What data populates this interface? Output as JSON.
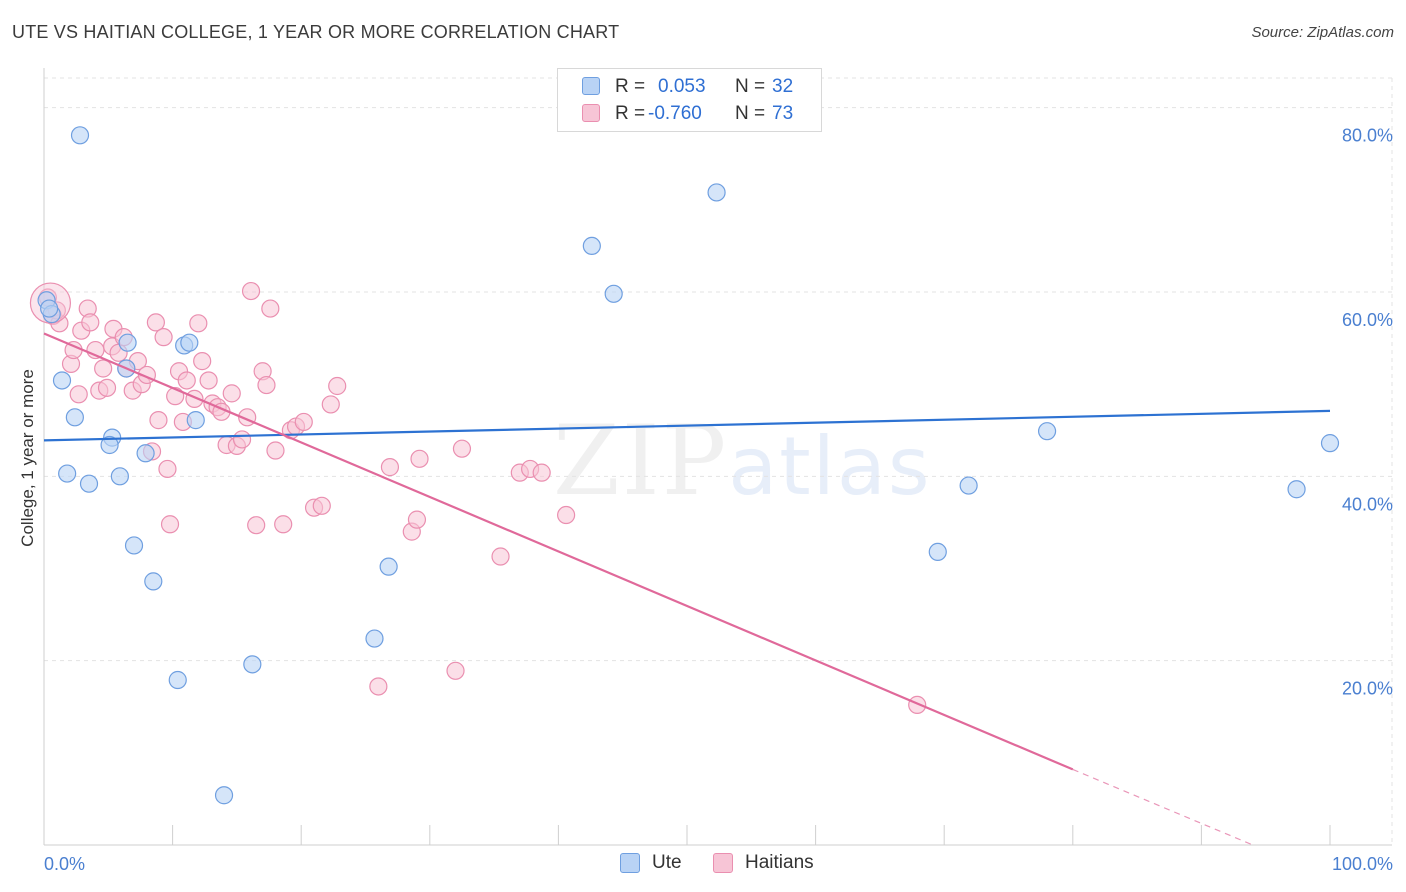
{
  "header": {
    "title": "UTE VS HAITIAN COLLEGE, 1 YEAR OR MORE CORRELATION CHART",
    "source": "Source: ZipAtlas.com"
  },
  "watermark": {
    "zip": "ZIP",
    "atlas": "atlas"
  },
  "legend_top": {
    "rows": [
      {
        "r_label": "R =",
        "r_value": "0.053",
        "n_label": "N =",
        "n_value": "32"
      },
      {
        "r_label": "R =",
        "r_value": "-0.760",
        "n_label": "N =",
        "n_value": "73"
      }
    ]
  },
  "legend_bottom": {
    "ute": "Ute",
    "haitians": "Haitians"
  },
  "colors": {
    "ute_fill": "#b9d3f5",
    "ute_stroke": "#6f9fe0",
    "ute_line": "#2d72d2",
    "haitian_fill": "#f7c5d6",
    "haitian_stroke": "#ea8fb0",
    "haitian_line": "#e0699a",
    "grid": "#e3e3e3",
    "tick_text": "#4a7fd0"
  },
  "chart_data": {
    "type": "scatter",
    "title": "UTE VS HAITIAN COLLEGE, 1 YEAR OR MORE CORRELATION CHART",
    "xlabel": "",
    "ylabel": "College, 1 year or more",
    "xlim": [
      0,
      100
    ],
    "ylim": [
      0,
      83
    ],
    "x_ticks": [
      {
        "value": 0,
        "label": "0.0%"
      },
      {
        "value": 100,
        "label": "100.0%"
      }
    ],
    "y_ticks": [
      {
        "value": 20,
        "label": "20.0%"
      },
      {
        "value": 40,
        "label": "40.0%"
      },
      {
        "value": 60,
        "label": "60.0%"
      },
      {
        "value": 80,
        "label": "80.0%"
      }
    ],
    "series": [
      {
        "name": "Ute",
        "R": 0.053,
        "N": 32,
        "trend": {
          "x": [
            0,
            100
          ],
          "y": [
            43.9,
            47.1
          ]
        },
        "points": [
          [
            0.2,
            59.1
          ],
          [
            0.6,
            57.6
          ],
          [
            2.8,
            77.0
          ],
          [
            1.4,
            50.4
          ],
          [
            2.4,
            46.4
          ],
          [
            1.8,
            40.3
          ],
          [
            3.5,
            39.2
          ],
          [
            5.3,
            44.2
          ],
          [
            5.1,
            43.4
          ],
          [
            5.9,
            40.0
          ],
          [
            6.5,
            54.5
          ],
          [
            6.4,
            51.7
          ],
          [
            7.0,
            32.5
          ],
          [
            7.9,
            42.5
          ],
          [
            8.5,
            28.6
          ],
          [
            10.4,
            17.9
          ],
          [
            10.9,
            54.2
          ],
          [
            11.3,
            54.5
          ],
          [
            11.8,
            46.1
          ],
          [
            14.0,
            5.4
          ],
          [
            16.2,
            19.6
          ],
          [
            25.7,
            22.4
          ],
          [
            26.8,
            30.2
          ],
          [
            42.6,
            65.0
          ],
          [
            44.3,
            59.8
          ],
          [
            52.3,
            70.8
          ],
          [
            69.5,
            31.8
          ],
          [
            71.9,
            39.0
          ],
          [
            78.0,
            44.9
          ],
          [
            97.4,
            38.6
          ],
          [
            100.0,
            43.6
          ],
          [
            0.4,
            58.2
          ]
        ]
      },
      {
        "name": "Haitians",
        "R": -0.76,
        "N": 73,
        "trend": {
          "x": [
            0,
            80
          ],
          "y": [
            55.5,
            8.2
          ]
        },
        "trend_dashed": {
          "x": [
            80,
            94
          ],
          "y": [
            8.2,
            0
          ]
        },
        "points": [
          [
            0.3,
            59.4
          ],
          [
            0.7,
            57.4
          ],
          [
            1.2,
            56.6
          ],
          [
            1.0,
            58.0
          ],
          [
            2.1,
            52.2
          ],
          [
            2.3,
            53.7
          ],
          [
            2.7,
            48.9
          ],
          [
            2.9,
            55.8
          ],
          [
            3.4,
            58.2
          ],
          [
            3.6,
            56.7
          ],
          [
            4.0,
            53.7
          ],
          [
            4.3,
            49.3
          ],
          [
            4.9,
            49.6
          ],
          [
            4.6,
            51.7
          ],
          [
            5.3,
            54.1
          ],
          [
            5.4,
            56.0
          ],
          [
            5.8,
            53.4
          ],
          [
            6.2,
            55.1
          ],
          [
            6.4,
            51.7
          ],
          [
            6.9,
            49.3
          ],
          [
            7.3,
            52.5
          ],
          [
            7.6,
            50.0
          ],
          [
            8.0,
            51.0
          ],
          [
            8.4,
            42.7
          ],
          [
            8.7,
            56.7
          ],
          [
            8.9,
            46.1
          ],
          [
            9.3,
            55.1
          ],
          [
            9.6,
            40.8
          ],
          [
            9.8,
            34.8
          ],
          [
            10.2,
            48.7
          ],
          [
            10.5,
            51.4
          ],
          [
            10.8,
            45.9
          ],
          [
            11.1,
            50.4
          ],
          [
            11.7,
            48.4
          ],
          [
            12.0,
            56.6
          ],
          [
            12.3,
            52.5
          ],
          [
            12.8,
            50.4
          ],
          [
            13.1,
            47.9
          ],
          [
            13.5,
            47.5
          ],
          [
            13.8,
            47.0
          ],
          [
            14.2,
            43.4
          ],
          [
            14.6,
            49.0
          ],
          [
            15.0,
            43.3
          ],
          [
            15.4,
            44.0
          ],
          [
            15.8,
            46.4
          ],
          [
            16.1,
            60.1
          ],
          [
            16.5,
            34.7
          ],
          [
            17.0,
            51.4
          ],
          [
            17.3,
            49.9
          ],
          [
            17.6,
            58.2
          ],
          [
            18.0,
            42.8
          ],
          [
            18.6,
            34.8
          ],
          [
            19.2,
            45.0
          ],
          [
            19.6,
            45.4
          ],
          [
            20.2,
            45.9
          ],
          [
            21.0,
            36.6
          ],
          [
            21.6,
            36.8
          ],
          [
            22.3,
            47.8
          ],
          [
            22.8,
            49.8
          ],
          [
            26.0,
            17.2
          ],
          [
            26.9,
            41.0
          ],
          [
            28.6,
            34.0
          ],
          [
            29.0,
            35.3
          ],
          [
            29.2,
            41.9
          ],
          [
            32.0,
            18.9
          ],
          [
            32.5,
            43.0
          ],
          [
            35.5,
            31.3
          ],
          [
            37.0,
            40.4
          ],
          [
            37.8,
            40.8
          ],
          [
            38.7,
            40.4
          ],
          [
            40.6,
            35.8
          ],
          [
            67.9,
            15.2
          ],
          [
            0.5,
            58.8
          ]
        ]
      }
    ]
  }
}
